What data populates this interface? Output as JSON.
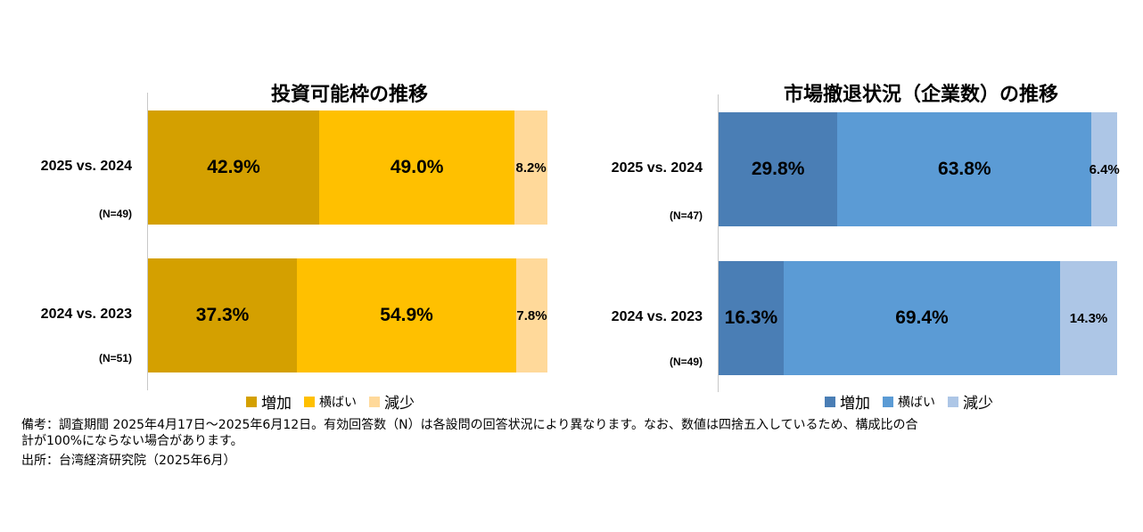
{
  "chart_data": [
    {
      "type": "bar",
      "orientation": "horizontal-stacked-100",
      "title": "投資可能枠の推移",
      "categories": [
        "2025 vs. 2024",
        "2024 vs. 2023"
      ],
      "sample_sizes": [
        "(N=49)",
        "(N=51)"
      ],
      "series": [
        {
          "name": "増加",
          "values": [
            42.9,
            37.3
          ],
          "labels": [
            "42.9%",
            "37.3%"
          ],
          "color": "#d4a000"
        },
        {
          "name": "横ばい",
          "values": [
            49.0,
            54.9
          ],
          "labels": [
            "49.0%",
            "54.9%"
          ],
          "color": "#ffc000"
        },
        {
          "name": "減少",
          "values": [
            8.2,
            7.8
          ],
          "labels": [
            "8.2%",
            "7.8%"
          ],
          "color": "#ffd99a"
        }
      ],
      "xlim": [
        0,
        100
      ],
      "legend_position": "bottom"
    },
    {
      "type": "bar",
      "orientation": "horizontal-stacked-100",
      "title": "市場撤退状況（企業数）の推移",
      "categories": [
        "2025 vs. 2024",
        "2024 vs. 2023"
      ],
      "sample_sizes": [
        "(N=47)",
        "(N=49)"
      ],
      "series": [
        {
          "name": "増加",
          "values": [
            29.8,
            16.3
          ],
          "labels": [
            "29.8%",
            "16.3%"
          ],
          "color": "#4a7eb5"
        },
        {
          "name": "横ばい",
          "values": [
            63.8,
            69.4
          ],
          "labels": [
            "63.8%",
            "69.4%"
          ],
          "color": "#5b9bd5"
        },
        {
          "name": "減少",
          "values": [
            6.4,
            14.3
          ],
          "labels": [
            "6.4%",
            "14.3%"
          ],
          "color": "#adc6e6"
        }
      ],
      "xlim": [
        0,
        100
      ],
      "legend_position": "bottom"
    }
  ],
  "notes": {
    "line1": "備考：調査期間 2025年4月17日～2025年6月12日。有効回答数（N）は各設問の回答状況により異なります。なお、数値は四捨五入しているため、構成比の合",
    "line2": "計が100%にならない場合があります。",
    "line3": "出所：台湾経済研究院（2025年6月）"
  }
}
